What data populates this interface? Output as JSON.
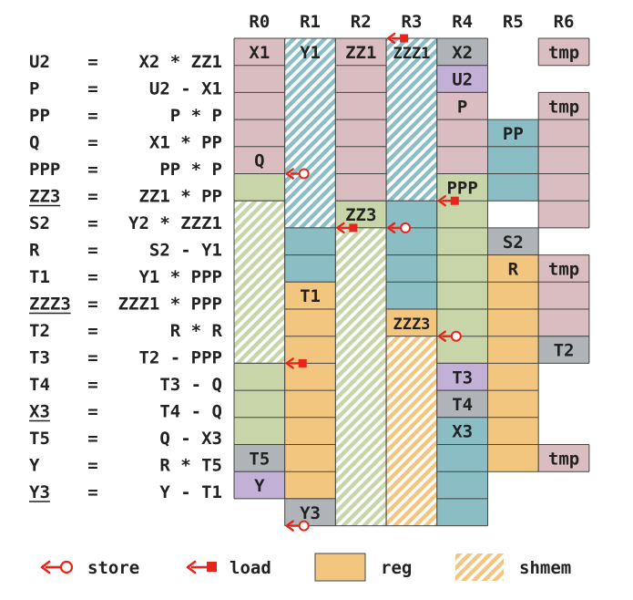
{
  "registers": [
    "R0",
    "R1",
    "R2",
    "R3",
    "R4",
    "R5",
    "R6"
  ],
  "equations": [
    {
      "lhs": "U2",
      "op": "=",
      "rhs": "X2 * ZZ1",
      "underline": false
    },
    {
      "lhs": "P",
      "op": "=",
      "rhs": "U2 - X1",
      "underline": false
    },
    {
      "lhs": "PP",
      "op": "=",
      "rhs": "P * P",
      "underline": false
    },
    {
      "lhs": "Q",
      "op": "=",
      "rhs": "X1 * PP",
      "underline": false
    },
    {
      "lhs": "PPP",
      "op": "=",
      "rhs": "PP * P",
      "underline": false
    },
    {
      "lhs": "ZZ3",
      "op": "=",
      "rhs": "ZZ1 * PP",
      "underline": true
    },
    {
      "lhs": "S2",
      "op": "=",
      "rhs": "Y2 * ZZZ1",
      "underline": false
    },
    {
      "lhs": "R",
      "op": "=",
      "rhs": "S2 - Y1",
      "underline": false
    },
    {
      "lhs": "T1",
      "op": "=",
      "rhs": "Y1 * PPP",
      "underline": false
    },
    {
      "lhs": "ZZZ3",
      "op": "=",
      "rhs": "ZZZ1 * PPP",
      "underline": true
    },
    {
      "lhs": "T2",
      "op": "=",
      "rhs": "R * R",
      "underline": false
    },
    {
      "lhs": "T3",
      "op": "=",
      "rhs": "T2 - PPP",
      "underline": false
    },
    {
      "lhs": "T4",
      "op": "=",
      "rhs": "T3 - Q",
      "underline": false
    },
    {
      "lhs": "X3",
      "op": "=",
      "rhs": "T4 - Q",
      "underline": true
    },
    {
      "lhs": "T5",
      "op": "=",
      "rhs": "Q - X3",
      "underline": false
    },
    {
      "lhs": "Y",
      "op": "=",
      "rhs": "R * T5",
      "underline": false
    },
    {
      "lhs": "Y3",
      "op": "=",
      "rhs": "Y - T1",
      "underline": true
    }
  ],
  "colors": {
    "pink": "#d9bdc0",
    "blue": "#8bbdc5",
    "green": "#c7d5a8",
    "orange": "#f3c67f",
    "gray": "#b0b3b8",
    "purple": "#c3b0d6",
    "border": "#444444",
    "arrow": "#e8251a",
    "hatch_blue": "#8bbdc5",
    "hatch_green": "#c7d5a8",
    "hatch_orange": "#f3c67f"
  },
  "blocks": [
    {
      "col": 0,
      "start": 0,
      "end": 5,
      "color": "pink"
    },
    {
      "col": 0,
      "start": 5,
      "end": 6,
      "color": "green"
    },
    {
      "col": 0,
      "start": 6,
      "end": 12,
      "color": "green",
      "hatch": true
    },
    {
      "col": 0,
      "start": 12,
      "end": 15,
      "color": "green"
    },
    {
      "col": 0,
      "start": 15,
      "end": 16,
      "color": "gray"
    },
    {
      "col": 0,
      "start": 16,
      "end": 17,
      "color": "purple"
    },
    {
      "col": 1,
      "start": 0,
      "end": 7,
      "color": "blue",
      "hatch": true
    },
    {
      "col": 1,
      "start": 7,
      "end": 9,
      "color": "blue"
    },
    {
      "col": 1,
      "start": 9,
      "end": 17,
      "color": "orange"
    },
    {
      "col": 1,
      "start": 17,
      "end": 18,
      "color": "gray"
    },
    {
      "col": 2,
      "start": 0,
      "end": 6,
      "color": "pink"
    },
    {
      "col": 2,
      "start": 6,
      "end": 7,
      "color": "green"
    },
    {
      "col": 2,
      "start": 7,
      "end": 18,
      "color": "green",
      "hatch": true
    },
    {
      "col": 3,
      "start": 0,
      "end": 6,
      "color": "blue",
      "hatch": true
    },
    {
      "col": 3,
      "start": 6,
      "end": 10,
      "color": "blue"
    },
    {
      "col": 3,
      "start": 10,
      "end": 11,
      "color": "orange"
    },
    {
      "col": 3,
      "start": 11,
      "end": 18,
      "color": "orange",
      "hatch": true
    },
    {
      "col": 4,
      "start": 0,
      "end": 1,
      "color": "gray"
    },
    {
      "col": 4,
      "start": 1,
      "end": 2,
      "color": "purple"
    },
    {
      "col": 4,
      "start": 2,
      "end": 5,
      "color": "pink"
    },
    {
      "col": 4,
      "start": 5,
      "end": 12,
      "color": "green"
    },
    {
      "col": 4,
      "start": 12,
      "end": 13,
      "color": "purple"
    },
    {
      "col": 4,
      "start": 13,
      "end": 14,
      "color": "gray"
    },
    {
      "col": 4,
      "start": 14,
      "end": 18,
      "color": "blue"
    },
    {
      "col": 5,
      "start": 3,
      "end": 6,
      "color": "blue"
    },
    {
      "col": 5,
      "start": 7,
      "end": 8,
      "color": "gray"
    },
    {
      "col": 5,
      "start": 8,
      "end": 16,
      "color": "orange"
    },
    {
      "col": 6,
      "start": 0,
      "end": 1,
      "color": "pink"
    },
    {
      "col": 6,
      "start": 2,
      "end": 7,
      "color": "pink"
    },
    {
      "col": 6,
      "start": 8,
      "end": 11,
      "color": "pink"
    },
    {
      "col": 6,
      "start": 11,
      "end": 12,
      "color": "gray"
    },
    {
      "col": 6,
      "start": 15,
      "end": 16,
      "color": "pink"
    }
  ],
  "labels": [
    {
      "col": 0,
      "row": 0,
      "text": "X1"
    },
    {
      "col": 1,
      "row": 0,
      "text": "Y1"
    },
    {
      "col": 2,
      "row": 0,
      "text": "ZZ1"
    },
    {
      "col": 3,
      "row": 0,
      "text": "ZZZ1"
    },
    {
      "col": 4,
      "row": 0,
      "text": "X2"
    },
    {
      "col": 6,
      "row": 0,
      "text": "tmp"
    },
    {
      "col": 4,
      "row": 1,
      "text": "U2"
    },
    {
      "col": 4,
      "row": 2,
      "text": "P"
    },
    {
      "col": 6,
      "row": 2,
      "text": "tmp"
    },
    {
      "col": 5,
      "row": 3,
      "text": "PP"
    },
    {
      "col": 0,
      "row": 4,
      "text": "Q"
    },
    {
      "col": 4,
      "row": 5,
      "text": "PPP"
    },
    {
      "col": 2,
      "row": 6,
      "text": "ZZ3"
    },
    {
      "col": 5,
      "row": 7,
      "text": "S2"
    },
    {
      "col": 5,
      "row": 8,
      "text": "R"
    },
    {
      "col": 6,
      "row": 8,
      "text": "tmp"
    },
    {
      "col": 1,
      "row": 9,
      "text": "T1"
    },
    {
      "col": 3,
      "row": 10,
      "text": "ZZZ3"
    },
    {
      "col": 6,
      "row": 11,
      "text": "T2"
    },
    {
      "col": 4,
      "row": 12,
      "text": "T3"
    },
    {
      "col": 4,
      "row": 13,
      "text": "T4"
    },
    {
      "col": 4,
      "row": 14,
      "text": "X3"
    },
    {
      "col": 0,
      "row": 15,
      "text": "T5"
    },
    {
      "col": 6,
      "row": 15,
      "text": "tmp"
    },
    {
      "col": 0,
      "row": 16,
      "text": "Y"
    },
    {
      "col": 1,
      "row": 17,
      "text": "Y3"
    }
  ],
  "arrows": [
    {
      "type": "load",
      "col": 3,
      "boundary": 0
    },
    {
      "type": "store",
      "col": 1,
      "boundary": 5
    },
    {
      "type": "load",
      "col": 4,
      "boundary": 6
    },
    {
      "type": "load",
      "col": 2,
      "boundary": 7
    },
    {
      "type": "store",
      "col": 3,
      "boundary": 7
    },
    {
      "type": "store",
      "col": 4,
      "boundary": 11
    },
    {
      "type": "load",
      "col": 1,
      "boundary": 12
    },
    {
      "type": "store",
      "col": 1,
      "boundary": 18
    }
  ],
  "legend": {
    "store": "store",
    "load": "load",
    "reg": "reg",
    "shmem": "shmem"
  }
}
